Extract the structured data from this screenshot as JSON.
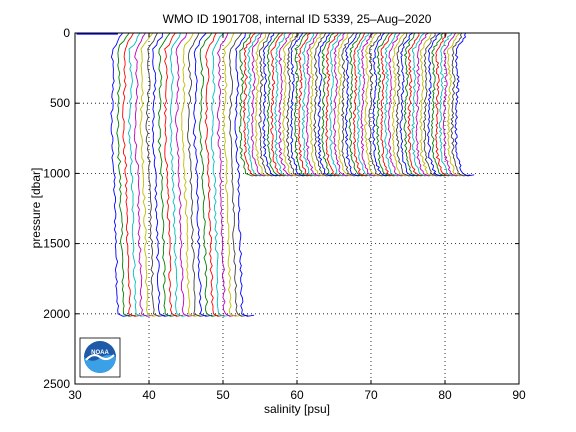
{
  "chart_data": {
    "type": "line",
    "title": "WMO ID 1901708, internal ID 5339, 25–Aug–2020",
    "xlabel": "salinity [psu]",
    "ylabel": "pressure [dbar]",
    "xlim": [
      30,
      90
    ],
    "ylim": [
      0,
      2500
    ],
    "y_reversed": true,
    "x_ticks": [
      30,
      40,
      50,
      60,
      70,
      80,
      90
    ],
    "x_tick_labels": [
      "30",
      "40",
      "50",
      "60",
      "70",
      "80",
      "90"
    ],
    "y_ticks": [
      0,
      500,
      1000,
      1500,
      2000,
      2500
    ],
    "y_tick_labels": [
      "0",
      "500",
      "1000",
      "1500",
      "2000",
      "2500"
    ],
    "grid": true,
    "grid_style": "dotted",
    "series_description": "Stacked salinity profiles, each offset by a constant in salinity",
    "profile_groups": [
      {
        "count": 22,
        "x_start": 35.2,
        "x_step": 0.8,
        "max_pressure": 2000
      },
      {
        "count": 56,
        "x_start": 52.6,
        "x_step": 0.53,
        "max_pressure": 1000
      }
    ],
    "palette": [
      "#0000ff",
      "#008000",
      "#ff0000",
      "#00bfbf",
      "#bf00bf",
      "#bfbf00",
      "#404040"
    ],
    "logo": {
      "name": "noaa-logo",
      "text": "NOAA"
    }
  }
}
